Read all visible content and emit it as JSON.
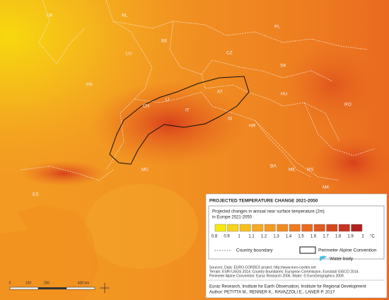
{
  "countries": [
    "UK",
    "NL",
    "BE",
    "LU",
    "PL",
    "CZ",
    "SK",
    "FR",
    "AT",
    "HU",
    "CH",
    "LI",
    "SI",
    "HR",
    "IT",
    "RO",
    "MC",
    "BA",
    "ME",
    "RS",
    "MK",
    "ES"
  ],
  "legend": {
    "title": "PROJECTED TEMPERATURE CHANGE 2021-2050",
    "subtitle": [
      "Projected changes in annual near surface temperature (2m)",
      "in Europe 2021-2050"
    ],
    "scale": {
      "ticks": [
        0.8,
        0.9,
        1,
        1.1,
        1.2,
        1.3,
        1.4,
        1.5,
        1.6,
        1.7,
        1.8,
        1.9,
        2
      ],
      "colors": [
        "#f7e80d",
        "#f9d21a",
        "#f8bf1c",
        "#f6a923",
        "#f39a22",
        "#f08a1f",
        "#ee7b1f",
        "#ea6a1f",
        "#e25a1e",
        "#d8471e",
        "#c8331e",
        "#b2211e"
      ],
      "unit": "°C"
    },
    "items": [
      "Country boundary",
      "Perimeter Alpine Convention",
      "Water body"
    ],
    "sources": [
      "Sources: Data: EURO-CORDEX project: http://www.euro-cordex.net",
      "Terrain: ESRI USGS 2014. Country boundaries: European Commission, Eurostat/ GISCO 2014.",
      "Perimeter Alpine Convention: Eurac Research 2006. Water: © EuroGeographics 2009."
    ],
    "credits": [
      "Eurac Research, Institute for Earth Observation, Institute for Regional Development",
      "Author: PETITTA M., RENNER K., RAVAZZOLI E., LANER P. 2017"
    ]
  },
  "scale_bar": [
    "0",
    "100",
    "200",
    "400 km"
  ]
}
